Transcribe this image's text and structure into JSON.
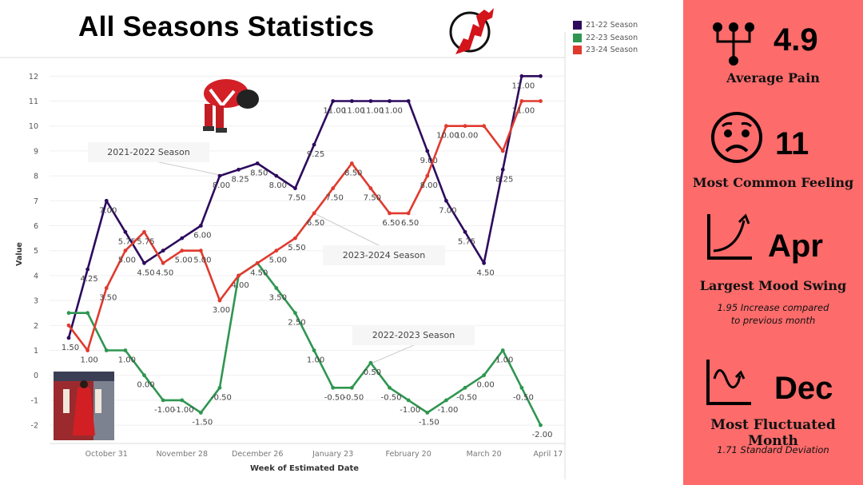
{
  "header": {
    "title": "All Seasons Statistics",
    "logo_text": "NJ"
  },
  "legend": [
    {
      "label": "21-22 Season",
      "color": "#2d0a5e"
    },
    {
      "label": "22-23 Season",
      "color": "#2e9650"
    },
    {
      "label": "23-24 Season",
      "color": "#e03a2e"
    }
  ],
  "annotations": {
    "s2122": "2021-2022 Season",
    "s2324": "2023-2024 Season",
    "s2223": "2022-2023 Season"
  },
  "chart_data": {
    "type": "line",
    "title": "All Seasons Statistics",
    "xlabel": "Week of Estimated Date",
    "ylabel": "Value",
    "ylim": [
      -2.5,
      12.5
    ],
    "yticks": [
      "12",
      "11",
      "10",
      "9",
      "8",
      "7",
      "6",
      "5",
      "4",
      "3",
      "2",
      "1",
      "0",
      "-1",
      "-2"
    ],
    "xticks": [
      {
        "label": "October 31",
        "index": 2
      },
      {
        "label": "November 28",
        "index": 6
      },
      {
        "label": "December 26",
        "index": 10
      },
      {
        "label": "January 23",
        "index": 14
      },
      {
        "label": "February 20",
        "index": 18
      },
      {
        "label": "March 20",
        "index": 22
      },
      {
        "label": "April 17",
        "index": 25.4
      }
    ],
    "grid": true,
    "legend_position": "top-right",
    "series": [
      {
        "name": "21-22 Season",
        "color": "#2d0a5e",
        "values": [
          1.5,
          4.25,
          7.0,
          5.75,
          4.5,
          5.0,
          5.5,
          6.0,
          8.0,
          8.25,
          8.5,
          8.0,
          7.5,
          9.25,
          11,
          11,
          11,
          11,
          11,
          9.0,
          7.0,
          5.75,
          4.5,
          8.25,
          12,
          12
        ],
        "unlabeled": [
          5,
          6,
          18,
          25
        ]
      },
      {
        "name": "22-23 Season",
        "color": "#2e9650",
        "values": [
          2.5,
          2.5,
          1.0,
          1.0,
          0.0,
          -1.0,
          -1.0,
          -1.5,
          -0.5,
          4.0,
          4.5,
          3.5,
          2.5,
          1.0,
          -0.5,
          -0.5,
          0.5,
          -0.5,
          -1.0,
          -1.5,
          -1.0,
          -0.5,
          0.0,
          1.0,
          -0.5,
          -2.0
        ],
        "unlabeled": [
          0,
          1,
          2
        ]
      },
      {
        "name": "23-24 Season",
        "color": "#e03a2e",
        "values": [
          2.0,
          1.0,
          3.5,
          5.0,
          5.75,
          4.5,
          5.0,
          5.0,
          3.0,
          4.0,
          4.5,
          5.0,
          5.5,
          6.5,
          7.5,
          8.5,
          7.5,
          6.5,
          6.5,
          8.0,
          10,
          10,
          10,
          9.0,
          11,
          11
        ],
        "unlabeled": [
          0,
          9,
          10,
          22,
          23,
          25
        ]
      }
    ]
  },
  "panel": {
    "avg_pain": {
      "value": "4.9",
      "label": "Average Pain"
    },
    "feeling": {
      "value": "11",
      "label": "Most Common Feeling"
    },
    "swing": {
      "value": "Apr",
      "label": "Largest Mood Swing",
      "sub1": "1.95 Increase compared",
      "sub2": "to previous month"
    },
    "fluct": {
      "value": "Dec",
      "label": "Most Fluctuated Month",
      "sub": "1.71 Standard Deviation"
    }
  }
}
